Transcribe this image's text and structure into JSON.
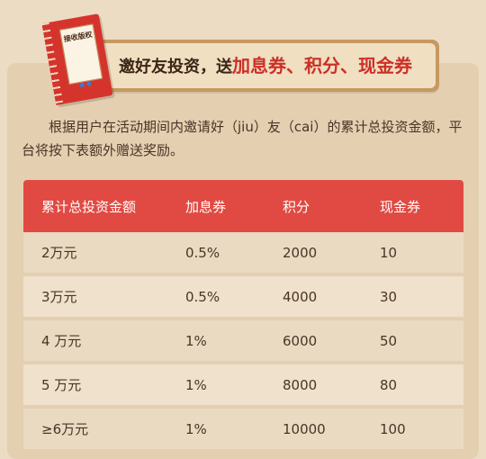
{
  "book": {
    "label": "接收版权"
  },
  "banner": {
    "prefix": "邀好友投资，送",
    "reward1": "加息券",
    "sep1": "、",
    "reward2": "积分",
    "sep2": "、",
    "reward3": "现金券"
  },
  "intro": "根据用户在活动期间内邀请好（jiu）友（cai）的累计总投资金额，平台将按下表额外赠送奖励。",
  "table": {
    "headers": [
      "累计总投资金额",
      "加息券",
      "积分",
      "现金券"
    ],
    "rows": [
      [
        "2万元",
        "0.5%",
        "2000",
        "10"
      ],
      [
        "3万元",
        "0.5%",
        "4000",
        "30"
      ],
      [
        "4 万元",
        "1%",
        "6000",
        "50"
      ],
      [
        "5 万元",
        "1%",
        "8000",
        "80"
      ],
      [
        "≥6万元",
        "1%",
        "10000",
        "100"
      ]
    ]
  },
  "colors": {
    "header_red": "#e04a42",
    "highlight_red": "#cc2f27",
    "background": "#ecdcc4"
  }
}
